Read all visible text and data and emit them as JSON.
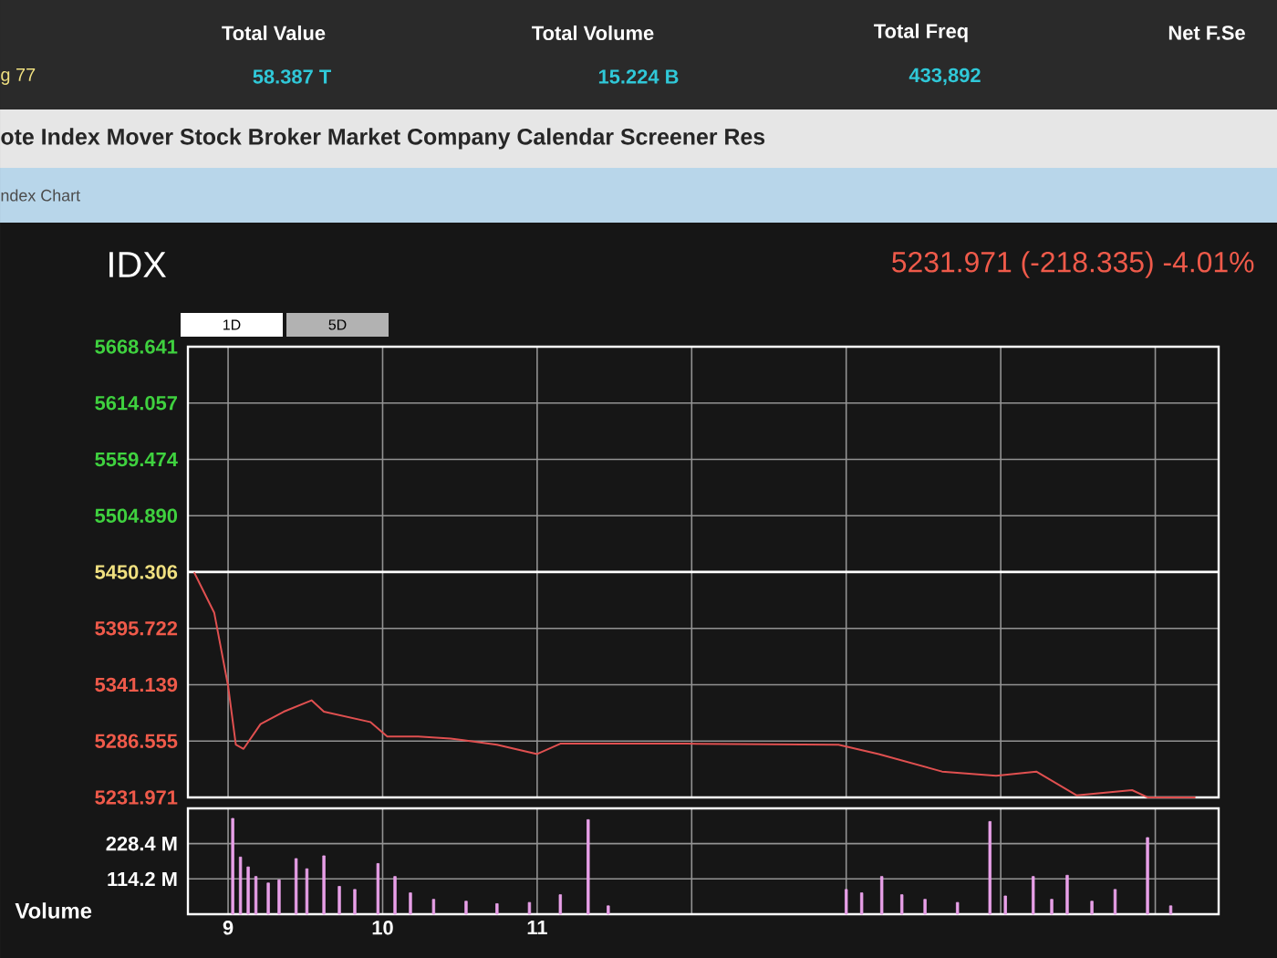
{
  "chart_data": [
    {
      "type": "line",
      "title": "IDX",
      "subtitle": "5231.971 (-218.335) -4.01%",
      "annotations": [
        "g 77",
        "Total Value",
        "58.387 T",
        "Total Volume",
        "15.224 B",
        "Total Freq",
        "433,892",
        "Net F.Se",
        "ote Index Mover Stock Broker Market Company Calendar Screener Res",
        "ndex Chart",
        "1D",
        "5D"
      ],
      "series": [
        {
          "color": "#e05050",
          "x": [
            8.78,
            8.91,
            9.0,
            9.05,
            9.1,
            9.21,
            9.36,
            9.54,
            9.62,
            9.92,
            10.03,
            10.23,
            10.44,
            10.74,
            11.0,
            11.15,
            11.97,
            12.95,
            13.21,
            13.62,
            13.97,
            14.23,
            14.49,
            14.85,
            14.95,
            15.26
          ],
          "values": [
            5450,
            5411,
            5340,
            5283,
            5279,
            5303,
            5315,
            5326,
            5315,
            5305,
            5291,
            5291,
            5289,
            5283,
            5274,
            5284,
            5284,
            5283,
            5274,
            5257,
            5253,
            5257,
            5234,
            5239,
            5232,
            5232
          ]
        }
      ],
      "xlim": [
        8.74,
        15.41
      ],
      "xticks": [
        9,
        10,
        11,
        12,
        13,
        14,
        15
      ],
      "ylim": [
        5231.971,
        5668.641
      ],
      "yticks": [
        5231.971,
        5286.555,
        5341.139,
        5395.722,
        5450.306,
        {
          "value": 5504.89,
          "label": "5504.890"
        },
        5559.474,
        5614.057,
        5668.641
      ],
      "ref_lines": [
        {
          "axis": "y",
          "value": 5450.306,
          "color": "#ffffff"
        }
      ],
      "grid": true,
      "tick_labels": "y"
    },
    {
      "type": "bar",
      "ylabel": "Volume",
      "series": [
        {
          "color": "#e8a0e8",
          "x": [
            9.03,
            9.08,
            9.13,
            9.18,
            9.26,
            9.33,
            9.44,
            9.51,
            9.62,
            9.72,
            9.82,
            9.97,
            10.08,
            10.18,
            10.33,
            10.54,
            10.74,
            10.95,
            11.15,
            11.33,
            11.46,
            13.0,
            13.1,
            13.23,
            13.36,
            13.51,
            13.72,
            13.93,
            14.03,
            14.21,
            14.33,
            14.43,
            14.59,
            14.74,
            14.95,
            15.1
          ],
          "values": [
            310,
            185,
            153,
            122,
            101,
            111,
            180,
            147,
            189,
            90,
            80,
            164,
            122,
            69,
            48,
            42,
            34,
            38,
            63,
            306,
            27,
            80,
            69,
            122,
            63,
            48,
            38,
            300,
            59,
            122,
            48,
            126,
            42,
            80,
            248,
            27
          ]
        }
      ],
      "xlim": [
        8.74,
        15.41
      ],
      "xticks": [
        9,
        10,
        11,
        {
          "value": 12,
          "label": null
        },
        {
          "value": 13,
          "label": null
        },
        {
          "value": 14,
          "label": null
        },
        {
          "value": 15,
          "label": null
        }
      ],
      "ylim": [
        0,
        342.6
      ],
      "yticks": [
        {
          "value": 114.2,
          "label": "114.2 M"
        },
        {
          "value": 228.4,
          "label": "228.4 M"
        }
      ],
      "grid": true
    }
  ]
}
